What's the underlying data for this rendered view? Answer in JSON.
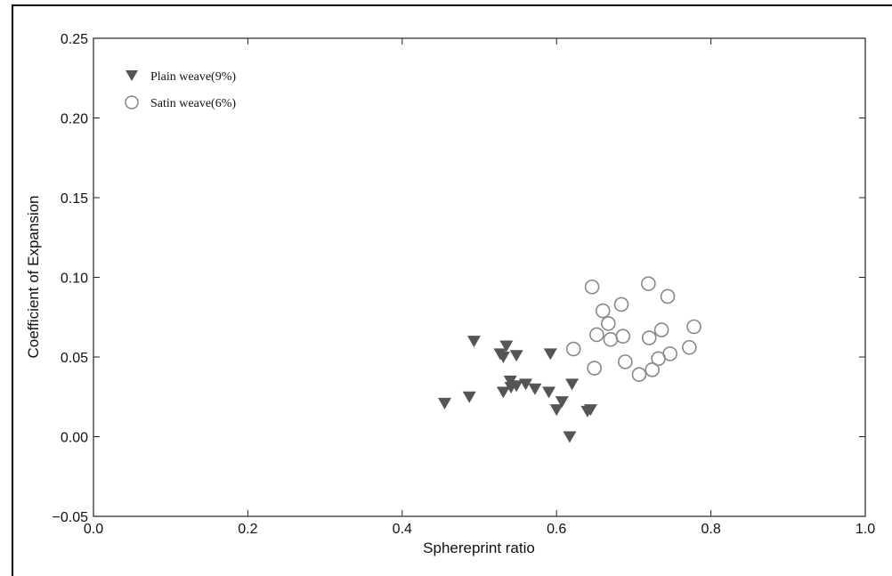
{
  "chart_data": {
    "type": "scatter",
    "title": "",
    "xlabel": "Sphereprint ratio",
    "ylabel": "Coefficient of Expansion",
    "xlim": [
      0.0,
      1.0
    ],
    "ylim": [
      -0.05,
      0.25
    ],
    "x_ticks": [
      "0.0",
      "0.2",
      "0.4",
      "0.6",
      "0.8",
      "1.0"
    ],
    "x_tick_values": [
      0.0,
      0.2,
      0.4,
      0.6,
      0.8,
      1.0
    ],
    "y_ticks": [
      "−0.05",
      "0.00",
      "0.05",
      "0.10",
      "0.15",
      "0.20",
      "0.25"
    ],
    "y_tick_values": [
      -0.05,
      0.0,
      0.05,
      0.1,
      0.15,
      0.2,
      0.25
    ],
    "grid": false,
    "legend_position": "top-left",
    "series": [
      {
        "name": "Plain weave(9%)",
        "marker": "triangle-down",
        "color": "#555555",
        "points": [
          [
            0.455,
            0.021
          ],
          [
            0.487,
            0.025
          ],
          [
            0.493,
            0.06
          ],
          [
            0.527,
            0.052
          ],
          [
            0.531,
            0.05
          ],
          [
            0.531,
            0.028
          ],
          [
            0.535,
            0.057
          ],
          [
            0.54,
            0.035
          ],
          [
            0.541,
            0.031
          ],
          [
            0.548,
            0.051
          ],
          [
            0.548,
            0.032
          ],
          [
            0.56,
            0.033
          ],
          [
            0.572,
            0.03
          ],
          [
            0.59,
            0.028
          ],
          [
            0.592,
            0.052
          ],
          [
            0.6,
            0.017
          ],
          [
            0.607,
            0.022
          ],
          [
            0.617,
            0.0
          ],
          [
            0.62,
            0.033
          ],
          [
            0.64,
            0.016
          ],
          [
            0.644,
            0.017
          ]
        ]
      },
      {
        "name": "Satin weave(6%)",
        "marker": "circle-open",
        "color": "#888888",
        "points": [
          [
            0.622,
            0.055
          ],
          [
            0.646,
            0.094
          ],
          [
            0.649,
            0.043
          ],
          [
            0.652,
            0.064
          ],
          [
            0.66,
            0.079
          ],
          [
            0.667,
            0.071
          ],
          [
            0.67,
            0.061
          ],
          [
            0.684,
            0.083
          ],
          [
            0.686,
            0.063
          ],
          [
            0.689,
            0.047
          ],
          [
            0.707,
            0.039
          ],
          [
            0.719,
            0.096
          ],
          [
            0.72,
            0.062
          ],
          [
            0.724,
            0.042
          ],
          [
            0.732,
            0.049
          ],
          [
            0.736,
            0.067
          ],
          [
            0.744,
            0.088
          ],
          [
            0.747,
            0.052
          ],
          [
            0.772,
            0.056
          ],
          [
            0.778,
            0.069
          ]
        ]
      }
    ]
  }
}
